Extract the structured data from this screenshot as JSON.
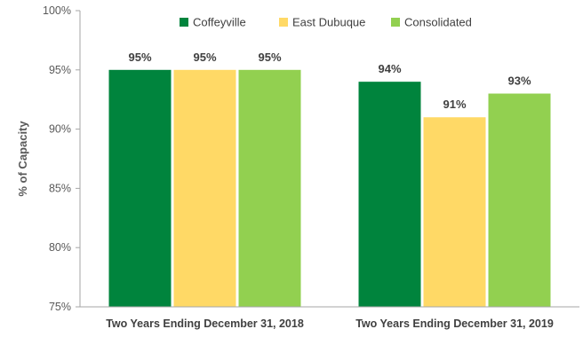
{
  "chart_data": {
    "type": "bar",
    "title": "",
    "xlabel": "",
    "ylabel": "% of Capacity",
    "ylim": [
      75,
      100
    ],
    "yticks": [
      75,
      80,
      85,
      90,
      95,
      100
    ],
    "ytick_suffix": "%",
    "grid": false,
    "legend_position": "top",
    "categories": [
      "Two Years Ending December 31, 2018",
      "Two Years Ending December 31, 2019"
    ],
    "series": [
      {
        "name": "Coffeyville",
        "color": "#00843d",
        "values": [
          95,
          94
        ],
        "labels": [
          "95%",
          "94%"
        ]
      },
      {
        "name": "East Dubuque",
        "color": "#ffd966",
        "values": [
          95,
          91
        ],
        "labels": [
          "95%",
          "91%"
        ]
      },
      {
        "name": "Consolidated",
        "color": "#92d050",
        "values": [
          95,
          93
        ],
        "labels": [
          "95%",
          "93%"
        ]
      }
    ]
  }
}
